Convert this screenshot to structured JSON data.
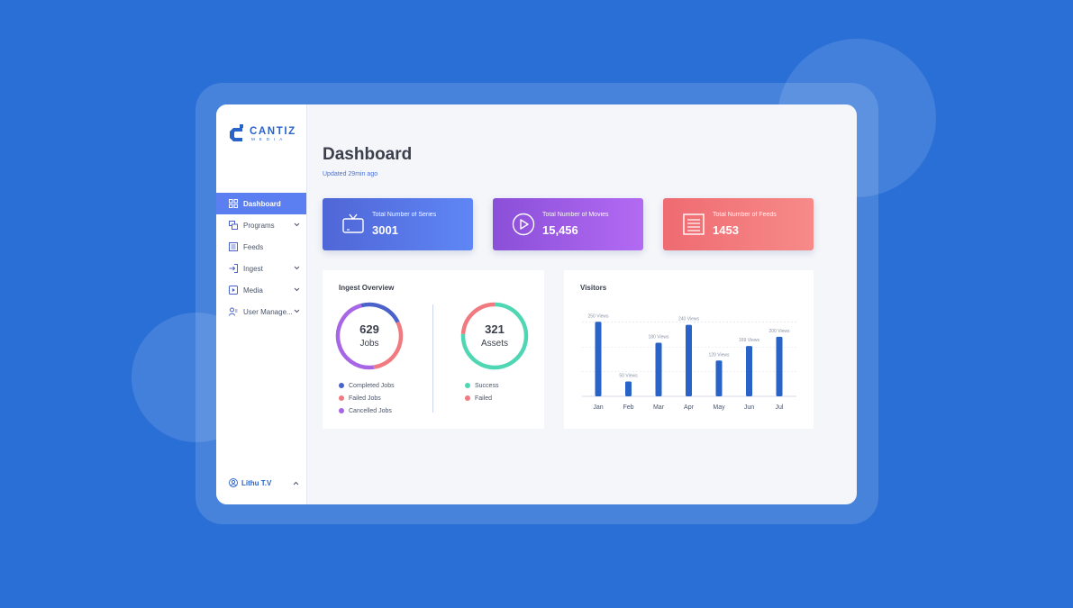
{
  "logo": {
    "name": "CANTIZ",
    "sub": "MEDIA"
  },
  "sidebar": {
    "items": [
      {
        "label": "Dashboard",
        "icon": "grid-icon",
        "active": true,
        "expandable": false
      },
      {
        "label": "Programs",
        "icon": "programs-icon",
        "active": false,
        "expandable": true
      },
      {
        "label": "Feeds",
        "icon": "feeds-icon",
        "active": false,
        "expandable": false
      },
      {
        "label": "Ingest",
        "icon": "ingest-icon",
        "active": false,
        "expandable": true
      },
      {
        "label": "Media",
        "icon": "media-icon",
        "active": false,
        "expandable": true
      },
      {
        "label": "User Manage...",
        "icon": "users-icon",
        "active": false,
        "expandable": true
      }
    ],
    "user": {
      "name": "Lithu T.V",
      "icon": "user-circle-icon"
    }
  },
  "header": {
    "title": "Dashboard",
    "updated": "Updated 29min ago"
  },
  "cards": [
    {
      "label": "Total Number of Series",
      "value": "3001",
      "icon": "tv-icon"
    },
    {
      "label": "Total Number of Movies",
      "value": "15,456",
      "icon": "play-circle-icon"
    },
    {
      "label": "Total Number of Feeds",
      "value": "1453",
      "icon": "list-icon"
    }
  ],
  "ingest": {
    "title": "Ingest Overview",
    "jobs": {
      "count": "629",
      "label": "Jobs",
      "legend": [
        {
          "label": "Completed Jobs",
          "color": "#4a62c9",
          "fraction": 0.22
        },
        {
          "label": "Failed Jobs",
          "color": "#f07a80",
          "fraction": 0.3
        },
        {
          "label": "Cancelled Jobs",
          "color": "#a666e6",
          "fraction": 0.48
        }
      ]
    },
    "assets": {
      "count": "321",
      "label": "Assets",
      "legend": [
        {
          "label": "Success",
          "color": "#4fd6b2",
          "fraction": 0.76
        },
        {
          "label": "Failed",
          "color": "#f07a80",
          "fraction": 0.24
        }
      ]
    }
  },
  "visitors": {
    "title": "Visitors",
    "bar_color": "#2a63c8"
  },
  "chart_data": {
    "type": "bar",
    "title": "Visitors",
    "categories": [
      "Jan",
      "Feb",
      "Mar",
      "Apr",
      "May",
      "Jun",
      "Jul"
    ],
    "values": [
      250,
      50,
      180,
      240,
      120,
      169,
      200
    ],
    "data_labels": [
      "250 Views",
      "50 Views",
      "180 Views",
      "240 Views",
      "120 Views",
      "169 Views",
      "200 Views"
    ],
    "ylim": [
      0,
      260
    ],
    "grid": true
  }
}
